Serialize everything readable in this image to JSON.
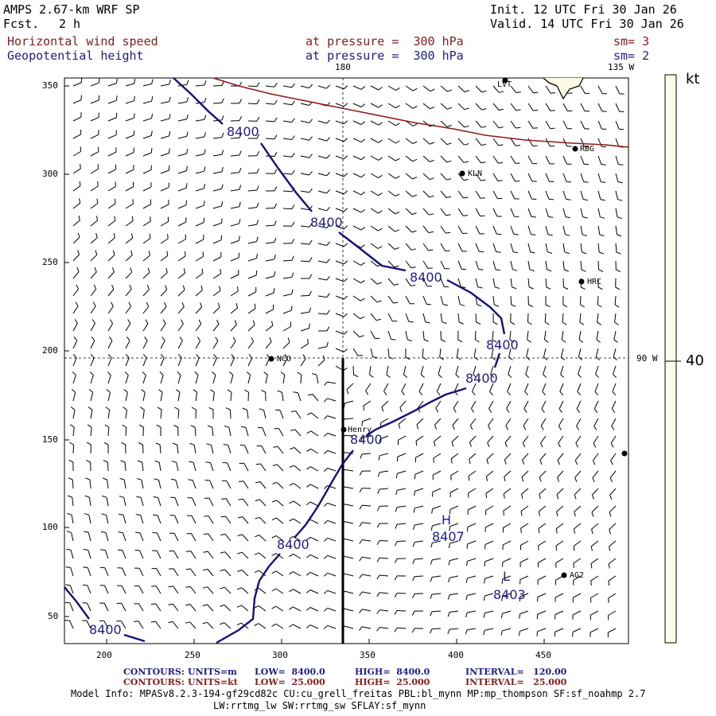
{
  "header": {
    "model": "AMPS 2.67-km WRF SP",
    "fcst_label": "Fcst.",
    "fcst_value": "2 h",
    "init": "Init. 12 UTC Fri 30 Jan 26",
    "valid": "Valid. 14 UTC Fri 30 Jan 26",
    "field1": "Horizontal wind speed",
    "field1_level": "at pressure =  300 hPa",
    "field1_sm": "sm= 3",
    "field2": "Geopotential height",
    "field2_level": "at pressure =  300 hPa",
    "field2_sm": "sm= 2"
  },
  "map": {
    "meridian_top_label": "180",
    "meridian_right_top_label": "135 W",
    "parallel_right_label": "90 W",
    "x_ticks": [
      "200",
      "250",
      "300",
      "350",
      "400",
      "450"
    ],
    "y_ticks": [
      "350",
      "300",
      "250",
      "200",
      "150",
      "100",
      "50"
    ],
    "stations": [
      {
        "id": "LVT",
        "label": "LVT"
      },
      {
        "id": "RBG",
        "label": "RBG"
      },
      {
        "id": "KLN",
        "label": "KLN"
      },
      {
        "id": "HRC",
        "label": "HRC"
      },
      {
        "id": "NCO",
        "label": "NCO"
      },
      {
        "id": "Henry",
        "label": "Henry"
      },
      {
        "id": "AG2",
        "label": "AG2"
      },
      {
        "id": "edge",
        "label": ""
      }
    ],
    "contour_labels": [
      "8400",
      "8400",
      "8400",
      "8400",
      "8400",
      "8400",
      "8400",
      "8400"
    ],
    "high_label": "H",
    "high_value": "8407",
    "low_label": "L",
    "low_value": "8403"
  },
  "colorbar": {
    "unit": "kt",
    "tick": "40",
    "fill_color": "#fdfbe6"
  },
  "footer": {
    "c1_label": "CONTOURS:",
    "c1_units": "UNITS=m",
    "c1_low": "LOW=  8400.0",
    "c1_high": "HIGH=  8400.0",
    "c1_interval": "INTERVAL=   120.00",
    "c2_label": "CONTOURS:",
    "c2_units": "UNITS=kt",
    "c2_low": "LOW=  25.000",
    "c2_high": "HIGH=  25.000",
    "c2_interval": "INTERVAL=   25.000",
    "model_info": "Model Info: MPASv8.2.3-194-gf29cd82c CU:cu_grell_freitas PBL:bl_mynn MP:mp_thompson SF:sf_noahmp 2.7",
    "model_info2": "LW:rrtmg_lw SW:rrtmg_sw SFLAY:sf_mynn"
  }
}
